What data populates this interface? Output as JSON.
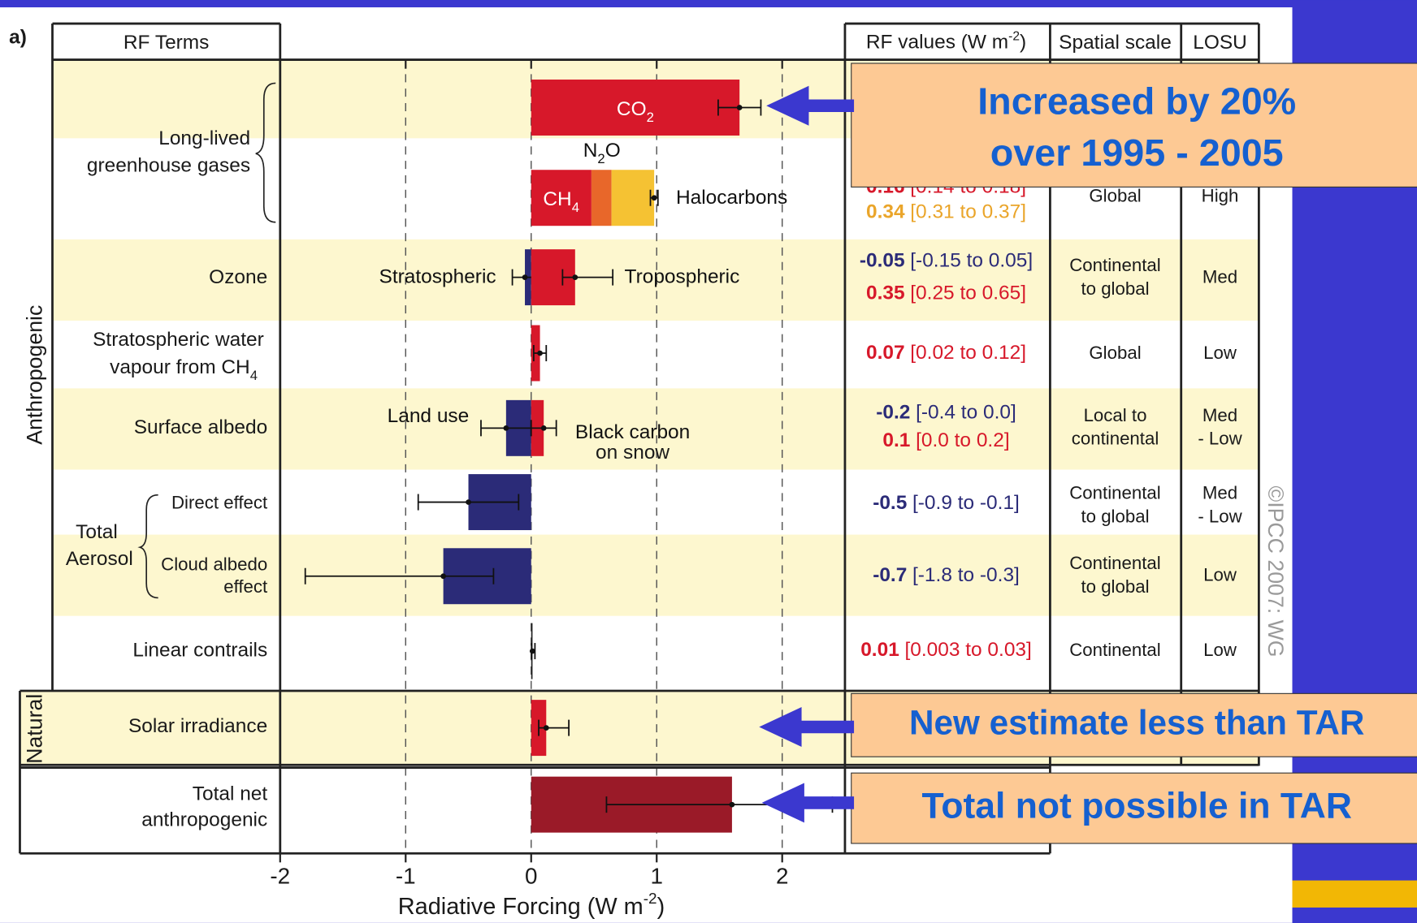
{
  "chart_data": {
    "type": "forcing",
    "panel_label": "a)",
    "header": {
      "terms": "RF Terms",
      "values": "RF values (W m",
      "values_sup": "-2",
      "values_end": ")",
      "scale": "Spatial scale",
      "losu": "LOSU"
    },
    "group_labels": [
      "Anthropogenic",
      "Natural"
    ],
    "row_labels": [
      "Long-lived",
      "greenhouse gases",
      "Ozone",
      "Stratospheric water",
      "vapour from CH",
      "Surface albedo",
      "Direct effect",
      "Total",
      "Aerosol",
      "Cloud albedo",
      "effect",
      "Linear contrails",
      "Solar irradiance",
      "Total net",
      "anthropogenic"
    ],
    "row_label_sub": "4",
    "bars": [
      {
        "name": "CO",
        "name_sub": "2",
        "value": 1.66,
        "low": 1.49,
        "high": 1.83,
        "color": "#d7182a"
      },
      {
        "name": "CH",
        "name_sub": "4",
        "value": 0.48,
        "color": "#d7182a"
      },
      {
        "name": "N",
        "name_sub": "2",
        "name_end": "O",
        "value": 0.16,
        "color": "#e8672a",
        "range_label": "[0.14 to 0.18]",
        "text_color": "#d7182a"
      },
      {
        "name": "Halocarbons",
        "value": 0.34,
        "low": 0.31,
        "high": 0.37,
        "color": "#f5c233",
        "range_label": "[0.31 to 0.37]",
        "text_color": "#eaa52a"
      },
      {
        "name": "Stratospheric",
        "value": -0.05,
        "low": -0.15,
        "high": 0.05,
        "color": "#2b2b78",
        "range_label": "[-0.15 to 0.05]",
        "text_color": "#2b2b78"
      },
      {
        "name": "Tropospheric",
        "value": 0.35,
        "low": 0.25,
        "high": 0.65,
        "color": "#d7182a",
        "range_label": "[0.25 to 0.65]",
        "text_color": "#d7182a"
      },
      {
        "value": 0.07,
        "low": 0.02,
        "high": 0.12,
        "color": "#d7182a",
        "range_label": "[0.02 to 0.12]",
        "text_color": "#d7182a"
      },
      {
        "name": "Land use",
        "value": -0.2,
        "low": -0.4,
        "high": 0.0,
        "color": "#2b2b78",
        "range_label": "[-0.4 to 0.0]",
        "text_color": "#2b2b78"
      },
      {
        "name": "Black carbon",
        "name2": "on snow",
        "value": 0.1,
        "low": 0.0,
        "high": 0.2,
        "color": "#d7182a",
        "range_label": "[0.0 to 0.2]",
        "text_color": "#d7182a"
      },
      {
        "value": -0.5,
        "low": -0.9,
        "high": -0.1,
        "color": "#2b2b78",
        "range_label": "[-0.9 to -0.1]",
        "text_color": "#2b2b78"
      },
      {
        "value": -0.7,
        "low": -1.8,
        "high": -0.3,
        "color": "#2b2b78",
        "range_label": "[-1.8 to -0.3]",
        "text_color": "#2b2b78"
      },
      {
        "value": 0.01,
        "low": 0.003,
        "high": 0.03,
        "color": "#222222",
        "range_label": "[0.003 to 0.03]",
        "text_color": "#d7182a"
      },
      {
        "value": 0.12,
        "low": 0.06,
        "high": 0.3,
        "color": "#d7182a"
      },
      {
        "value": 1.6,
        "low": 0.6,
        "high": 2.4,
        "color": "#9a1a28"
      }
    ],
    "spatial_scale": [
      [
        "Global"
      ],
      [
        "Continental",
        "to global"
      ],
      [
        "Global"
      ],
      [
        "Local to",
        "continental"
      ],
      [
        "Continental",
        "to global"
      ],
      [
        "Continental",
        "to global"
      ],
      [
        "Continental"
      ]
    ],
    "losu": [
      [
        "High"
      ],
      [
        "Med"
      ],
      [
        "Low"
      ],
      [
        "Med",
        "- Low"
      ],
      [
        "Med",
        "- Low"
      ],
      [
        "Low"
      ],
      [
        "Low"
      ]
    ],
    "xlim": [
      -2,
      2.5
    ],
    "xticks": [
      -2,
      -1,
      0,
      1,
      2
    ],
    "grid": true,
    "xlabel": "Radiative Forcing  (W m",
    "xlabel_sup": "-2",
    "xlabel_end": ")",
    "copyright": "©IPCC 2007: WG",
    "annotations": [
      "Increased by 20%",
      "over 1995 - 2005",
      "New estimate less than TAR",
      "Total not possible in TAR"
    ]
  }
}
